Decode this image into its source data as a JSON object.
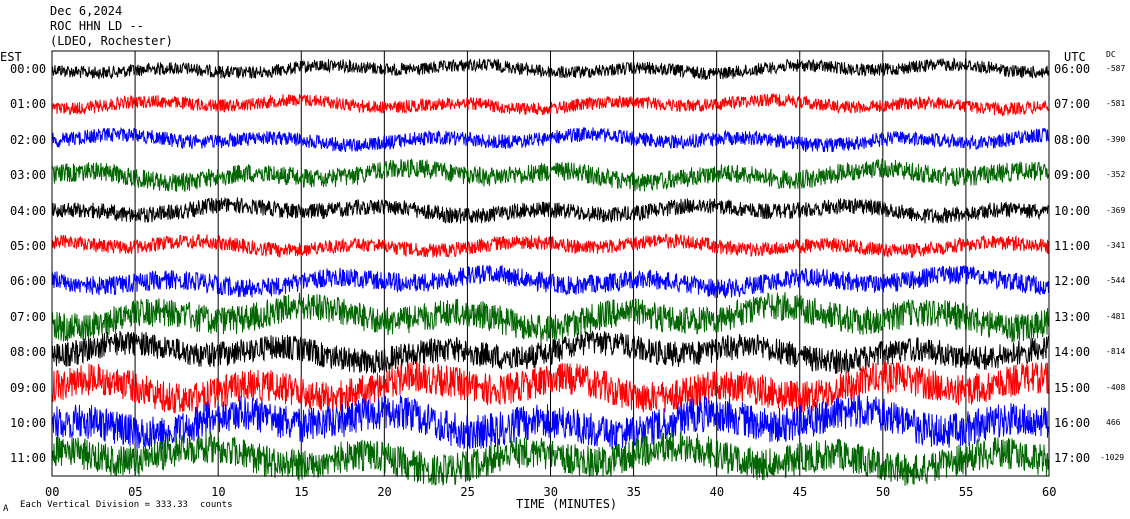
{
  "header": {
    "date": "Dec 6,2024",
    "station": "ROC HHN LD --",
    "network": "(LDEO, Rochester)"
  },
  "left_tz": "EST",
  "right_tz": "UTC",
  "dc_header": "DC",
  "footer": {
    "mark": "A",
    "scale_text": "Each Vertical Division = 333.33 ",
    "scale_unit": "counts"
  },
  "chart_data": {
    "type": "line",
    "title": "",
    "xlabel": "TIME (MINUTES)",
    "ylabel": "",
    "xlim": [
      0,
      60
    ],
    "x_ticks": [
      "00",
      "05",
      "10",
      "15",
      "20",
      "25",
      "30",
      "35",
      "40",
      "45",
      "50",
      "55",
      "60"
    ],
    "grid": true,
    "series_colors": [
      "#000000",
      "#ff0000",
      "#0000ff",
      "#006600"
    ],
    "rows": [
      {
        "est": "00:00",
        "utc": "06:00",
        "dc": "-587",
        "color": "#000000",
        "amp": 8,
        "base": 0
      },
      {
        "est": "01:00",
        "utc": "07:00",
        "dc": "-581",
        "color": "#ff0000",
        "amp": 8,
        "base": 1
      },
      {
        "est": "02:00",
        "utc": "08:00",
        "dc": "-390",
        "color": "#0000ff",
        "amp": 9,
        "base": 2
      },
      {
        "est": "03:00",
        "utc": "09:00",
        "dc": "-352",
        "color": "#006600",
        "amp": 12,
        "base": 3
      },
      {
        "est": "04:00",
        "utc": "10:00",
        "dc": "-369",
        "color": "#000000",
        "amp": 10,
        "base": 4
      },
      {
        "est": "05:00",
        "utc": "11:00",
        "dc": "-341",
        "color": "#ff0000",
        "amp": 9,
        "base": 5
      },
      {
        "est": "06:00",
        "utc": "12:00",
        "dc": "-544",
        "color": "#0000ff",
        "amp": 12,
        "base": 6
      },
      {
        "est": "07:00",
        "utc": "13:00",
        "dc": "-481",
        "color": "#006600",
        "amp": 18,
        "base": 7
      },
      {
        "est": "08:00",
        "utc": "14:00",
        "dc": "-814",
        "color": "#000000",
        "amp": 16,
        "base": 8
      },
      {
        "est": "09:00",
        "utc": "15:00",
        "dc": "-408",
        "color": "#ff0000",
        "amp": 20,
        "base": 9
      },
      {
        "est": "10:00",
        "utc": "16:00",
        "dc": "466",
        "color": "#0000ff",
        "amp": 22,
        "base": 10
      },
      {
        "est": "11:00",
        "utc": "17:00",
        "dc": "-1029",
        "color": "#006600",
        "amp": 20,
        "base": 11
      }
    ]
  }
}
